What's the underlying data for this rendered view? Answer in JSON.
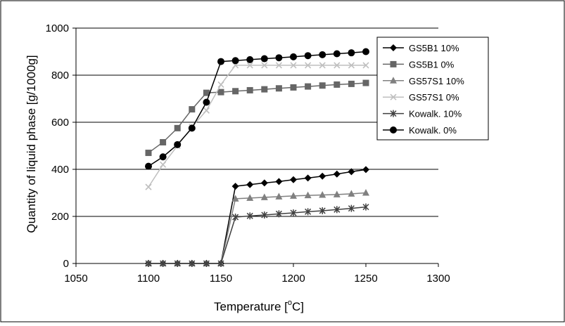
{
  "chart_data": {
    "type": "line",
    "xlabel_main": "Temperature [",
    "xlabel_sup": "o",
    "xlabel_unit_end": "C]",
    "ylabel": "Quantity of liquid phase [g/1000g]",
    "xlim": [
      1050,
      1300
    ],
    "ylim": [
      0,
      1000
    ],
    "xticks": [
      "1050",
      "1100",
      "1150",
      "1200",
      "1250",
      "1300"
    ],
    "yticks": [
      "0",
      "200",
      "400",
      "600",
      "800",
      "1000"
    ],
    "grid": "horizontal",
    "legend_position": "right",
    "series": [
      {
        "name": "GS5B1 10%",
        "marker": "diamond",
        "color": "#000000",
        "x": [
          1100,
          1110,
          1120,
          1130,
          1140,
          1150,
          1160,
          1170,
          1180,
          1190,
          1200,
          1210,
          1220,
          1230,
          1240,
          1250
        ],
        "y": [
          0,
          0,
          0,
          0,
          0,
          0,
          328,
          335,
          342,
          348,
          356,
          363,
          371,
          380,
          390,
          399
        ]
      },
      {
        "name": "GS5B1 0%",
        "marker": "square",
        "color": "#666666",
        "x": [
          1100,
          1110,
          1120,
          1130,
          1140,
          1150,
          1160,
          1170,
          1180,
          1190,
          1200,
          1210,
          1220,
          1230,
          1240,
          1250
        ],
        "y": [
          470,
          515,
          575,
          655,
          725,
          728,
          732,
          736,
          740,
          744,
          748,
          752,
          756,
          760,
          763,
          767
        ]
      },
      {
        "name": "GS57S1 10%",
        "marker": "triangle",
        "color": "#808080",
        "x": [
          1100,
          1110,
          1120,
          1130,
          1140,
          1150,
          1160,
          1170,
          1180,
          1190,
          1200,
          1210,
          1220,
          1230,
          1240,
          1250
        ],
        "y": [
          0,
          0,
          0,
          0,
          0,
          0,
          275,
          278,
          281,
          284,
          287,
          289,
          291,
          293,
          296,
          300
        ]
      },
      {
        "name": "GS57S1 0%",
        "marker": "x",
        "color": "#bfbfbf",
        "x": [
          1100,
          1110,
          1120,
          1130,
          1140,
          1150,
          1160,
          1170,
          1180,
          1190,
          1200,
          1210,
          1220,
          1230,
          1240,
          1250
        ],
        "y": [
          325,
          420,
          500,
          580,
          650,
          760,
          842,
          842,
          842,
          842,
          842,
          842,
          842,
          842,
          842,
          842
        ]
      },
      {
        "name": "Kowalk. 10%",
        "marker": "star",
        "color": "#404040",
        "x": [
          1100,
          1110,
          1120,
          1130,
          1140,
          1150,
          1160,
          1170,
          1180,
          1190,
          1200,
          1210,
          1220,
          1230,
          1240,
          1250
        ],
        "y": [
          0,
          0,
          0,
          0,
          0,
          0,
          197,
          202,
          206,
          211,
          215,
          220,
          224,
          229,
          234,
          240
        ]
      },
      {
        "name": "Kowalk. 0%",
        "marker": "circle",
        "color": "#000000",
        "x": [
          1100,
          1110,
          1120,
          1130,
          1140,
          1150,
          1160,
          1170,
          1180,
          1190,
          1200,
          1210,
          1220,
          1230,
          1240,
          1250
        ],
        "y": [
          413,
          453,
          505,
          575,
          685,
          858,
          862,
          866,
          870,
          874,
          878,
          883,
          887,
          891,
          895,
          900
        ]
      }
    ]
  }
}
